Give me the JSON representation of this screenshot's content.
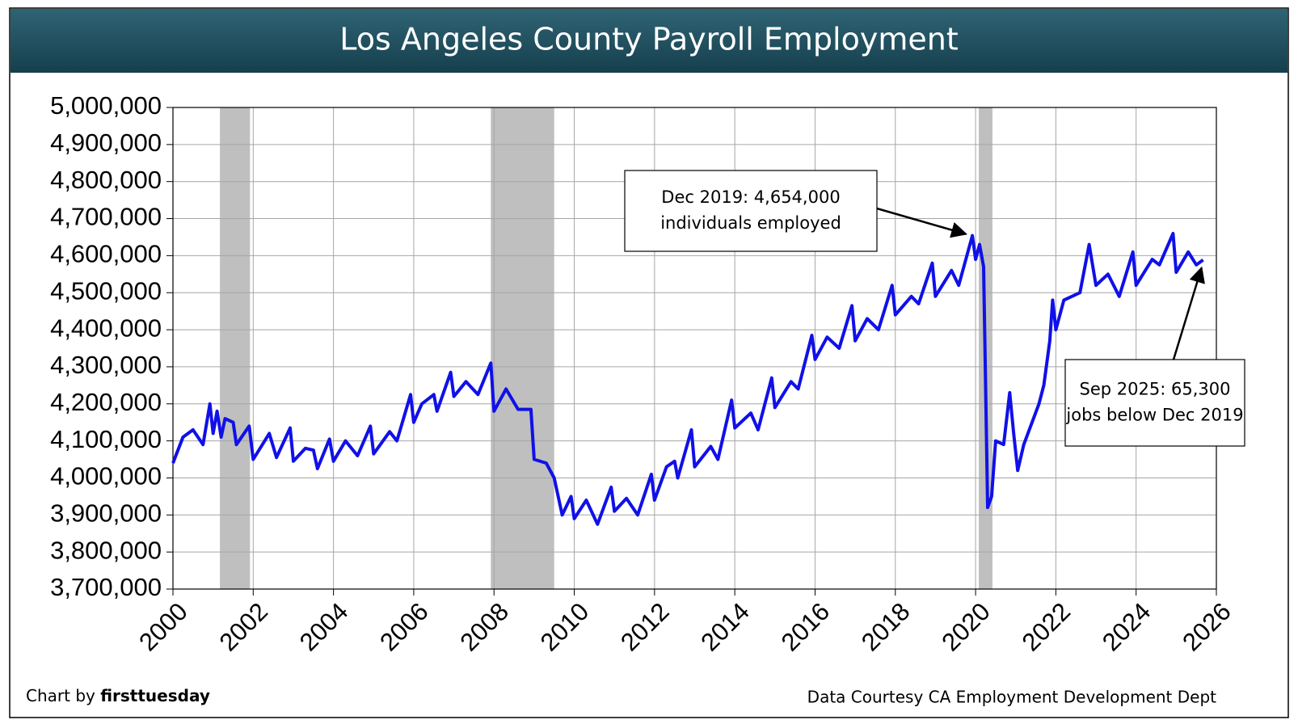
{
  "chart_data": {
    "type": "line",
    "title": "Los Angeles County Payroll Employment",
    "xlim": [
      2000,
      2026
    ],
    "xticks": [
      2000,
      2002,
      2004,
      2006,
      2008,
      2010,
      2012,
      2014,
      2016,
      2018,
      2020,
      2022,
      2024,
      2026
    ],
    "ylim": [
      3700000,
      5000000
    ],
    "yticks": [
      {
        "value": 3700000,
        "label": "3,700,000"
      },
      {
        "value": 3800000,
        "label": "3,800,000"
      },
      {
        "value": 3900000,
        "label": "3,900,000"
      },
      {
        "value": 4000000,
        "label": "4,000,000"
      },
      {
        "value": 4100000,
        "label": "4,100,000"
      },
      {
        "value": 4200000,
        "label": "4,200,000"
      },
      {
        "value": 4300000,
        "label": "4,300,000"
      },
      {
        "value": 4400000,
        "label": "4,400,000"
      },
      {
        "value": 4500000,
        "label": "4,500,000"
      },
      {
        "value": 4600000,
        "label": "4,600,000"
      },
      {
        "value": 4700000,
        "label": "4,700,000"
      },
      {
        "value": 4800000,
        "label": "4,800,000"
      },
      {
        "value": 4900000,
        "label": "4,900,000"
      },
      {
        "value": 5000000,
        "label": "5,000,000"
      }
    ],
    "grid": true,
    "shaded_periods": [
      [
        2001.17,
        2001.92
      ],
      [
        2007.92,
        2009.5
      ],
      [
        2020.08,
        2020.42
      ]
    ],
    "shade_color": "#bfbfbf",
    "series": [
      {
        "color": "#1010e8",
        "x": [
          2000.0,
          2000.25,
          2000.5,
          2000.75,
          2000.92,
          2001.0,
          2001.1,
          2001.2,
          2001.3,
          2001.5,
          2001.58,
          2001.9,
          2002.0,
          2002.4,
          2002.58,
          2002.92,
          2003.0,
          2003.3,
          2003.5,
          2003.6,
          2003.9,
          2004.0,
          2004.3,
          2004.6,
          2004.92,
          2005.0,
          2005.4,
          2005.58,
          2005.92,
          2006.0,
          2006.2,
          2006.5,
          2006.58,
          2006.92,
          2007.0,
          2007.3,
          2007.6,
          2007.92,
          2008.0,
          2008.3,
          2008.6,
          2008.92,
          2009.0,
          2009.3,
          2009.5,
          2009.7,
          2009.92,
          2010.0,
          2010.3,
          2010.58,
          2010.92,
          2011.0,
          2011.3,
          2011.58,
          2011.92,
          2012.0,
          2012.3,
          2012.5,
          2012.58,
          2012.92,
          2013.0,
          2013.4,
          2013.58,
          2013.92,
          2014.0,
          2014.4,
          2014.58,
          2014.92,
          2015.0,
          2015.4,
          2015.58,
          2015.92,
          2016.0,
          2016.3,
          2016.6,
          2016.92,
          2017.0,
          2017.3,
          2017.58,
          2017.92,
          2018.0,
          2018.4,
          2018.58,
          2018.92,
          2019.0,
          2019.4,
          2019.58,
          2019.92,
          2020.0,
          2020.1,
          2020.2,
          2020.3,
          2020.4,
          2020.5,
          2020.7,
          2020.85,
          2020.95,
          2021.05,
          2021.2,
          2021.58,
          2021.7,
          2021.85,
          2021.92,
          2022.0,
          2022.2,
          2022.6,
          2022.83,
          2023.0,
          2023.3,
          2023.58,
          2023.92,
          2024.0,
          2024.4,
          2024.58,
          2024.92,
          2025.0,
          2025.3,
          2025.5,
          2025.67
        ],
        "values": [
          4040000,
          4110000,
          4130000,
          4090000,
          4200000,
          4120000,
          4180000,
          4110000,
          4160000,
          4150000,
          4090000,
          4140000,
          4050000,
          4120000,
          4055000,
          4135000,
          4045000,
          4080000,
          4075000,
          4025000,
          4105000,
          4045000,
          4100000,
          4060000,
          4140000,
          4065000,
          4125000,
          4100000,
          4225000,
          4150000,
          4200000,
          4225000,
          4180000,
          4285000,
          4220000,
          4260000,
          4225000,
          4310000,
          4180000,
          4240000,
          4185000,
          4185000,
          4050000,
          4040000,
          4000000,
          3900000,
          3950000,
          3890000,
          3940000,
          3875000,
          3975000,
          3910000,
          3945000,
          3900000,
          4010000,
          3940000,
          4030000,
          4045000,
          4000000,
          4130000,
          4030000,
          4085000,
          4050000,
          4210000,
          4135000,
          4175000,
          4130000,
          4270000,
          4190000,
          4260000,
          4240000,
          4385000,
          4320000,
          4380000,
          4350000,
          4465000,
          4370000,
          4430000,
          4400000,
          4520000,
          4440000,
          4490000,
          4470000,
          4580000,
          4490000,
          4560000,
          4520000,
          4654000,
          4590000,
          4630000,
          4570000,
          3920000,
          3950000,
          4100000,
          4090000,
          4230000,
          4120000,
          4020000,
          4090000,
          4200000,
          4250000,
          4370000,
          4480000,
          4400000,
          4480000,
          4500000,
          4630000,
          4520000,
          4550000,
          4490000,
          4610000,
          4520000,
          4590000,
          4575000,
          4660000,
          4555000,
          4610000,
          4575000,
          4588700
        ]
      }
    ],
    "annotations": [
      {
        "lines": [
          "Dec 2019: 4,654,000",
          "individuals employed"
        ],
        "point": 87
      },
      {
        "lines": [
          "Sep 2025: 65,300",
          "jobs below Dec 2019"
        ],
        "point": 118
      }
    ],
    "footer_left": {
      "text": "Chart by ",
      "bold": "firsttuesday"
    },
    "footer_right": "Data Courtesy CA Employment Development Dept"
  }
}
